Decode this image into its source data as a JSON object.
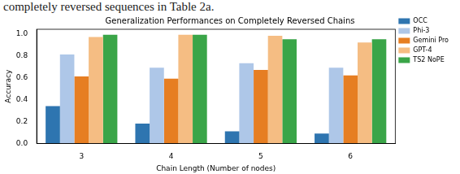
{
  "chart_data": {
    "type": "bar",
    "annotations": [
      "completely reversed sequences in Table 2a."
    ],
    "title": "Generalization Performances on Completely Reversed Chains",
    "x_label": "Chain Length (Number of nodes)",
    "y_label": "Accuracy",
    "categories": [
      "3",
      "4",
      "5",
      "6"
    ],
    "series": [
      {
        "name": "OCC",
        "color": "#2e75b0",
        "values": [
          0.34,
          0.18,
          0.11,
          0.09
        ]
      },
      {
        "name": "Phi-3",
        "color": "#aec7e8",
        "values": [
          0.81,
          0.69,
          0.73,
          0.69
        ]
      },
      {
        "name": "Gemini Pro",
        "color": "#e67e22",
        "values": [
          0.61,
          0.59,
          0.67,
          0.62
        ]
      },
      {
        "name": "GPT-4",
        "color": "#f5bd83",
        "values": [
          0.97,
          0.99,
          0.98,
          0.92
        ]
      },
      {
        "name": "TS2 NoPE",
        "color": "#3aa548",
        "values": [
          0.99,
          0.99,
          0.95,
          0.95
        ]
      }
    ],
    "ylim": [
      0,
      1.04
    ],
    "yticks": [
      {
        "value": 0,
        "label": "0.0"
      },
      0.2,
      0.4,
      0.6,
      0.8,
      {
        "value": 1,
        "label": "1.0"
      }
    ],
    "grid": false,
    "legend": "right"
  }
}
